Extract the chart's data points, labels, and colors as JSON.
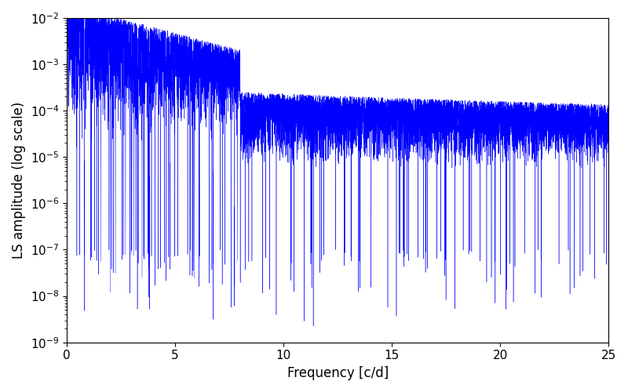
{
  "title": "",
  "xlabel": "Frequency [c/d]",
  "ylabel": "LS amplitude (log scale)",
  "line_color": "#0000ff",
  "xlim": [
    0,
    25
  ],
  "ylim": [
    1e-09,
    0.01
  ],
  "xticks": [
    0,
    5,
    10,
    15,
    20,
    25
  ],
  "figsize": [
    8.0,
    5.0
  ],
  "dpi": 100,
  "background_color": "#ffffff",
  "n_points": 10000,
  "seed": 12345
}
